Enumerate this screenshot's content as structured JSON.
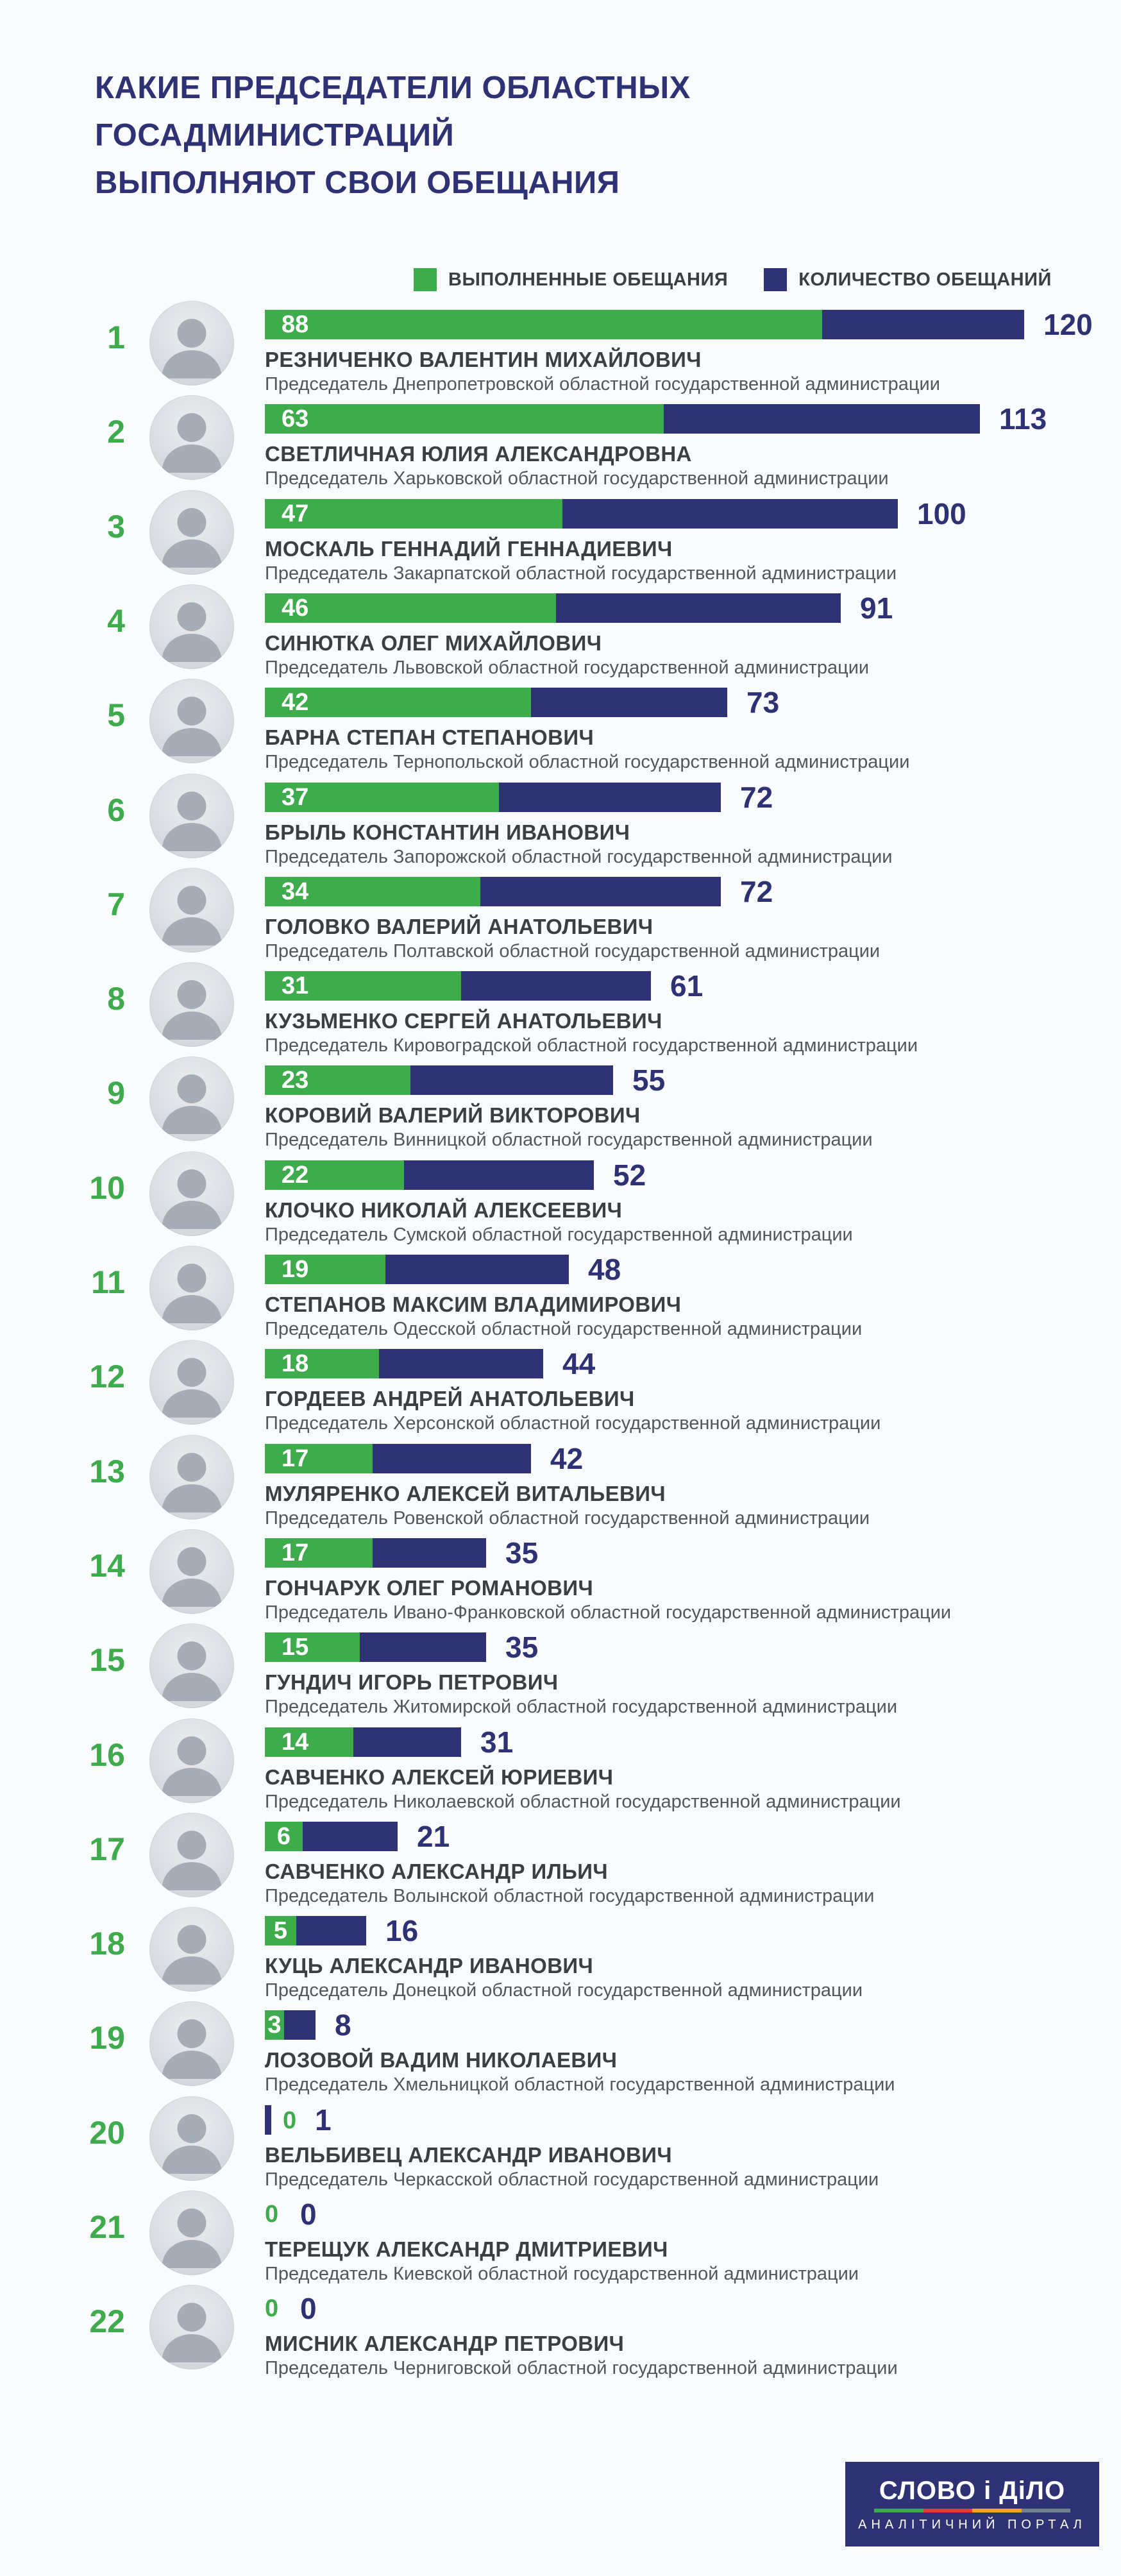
{
  "title": {
    "line1": "КАКИЕ ПРЕДСЕДАТЕЛИ ОБЛАСТНЫХ ГОСАДМИНИСТРАЦИЙ",
    "line2": "ВЫПОЛНЯЮТ СВОИ ОБЕЩАНИЯ"
  },
  "legend": {
    "fulfilled_label": "ВЫПОЛНЕННЫЕ ОБЕЩАНИЯ",
    "total_label": "КОЛИЧЕСТВО ОБЕЩАНИЙ"
  },
  "colors": {
    "green": "#3eab4d",
    "navy": "#2e3173",
    "title_navy": "#2e3274",
    "name_gray": "#3b3e43",
    "role_gray": "#53565b",
    "background": "#fafbfc",
    "stripe_green": "#3faa4b",
    "stripe_red": "#e23b33",
    "stripe_orange": "#f2a51f",
    "stripe_gray": "#71808c"
  },
  "rows": [
    {
      "rank": 1,
      "fulfilled": 88,
      "total": 120,
      "name": "РЕЗНИЧЕНКО ВАЛЕНТИН МИХАЙЛОВИЧ",
      "role": "Председатель Днепропетровской областной государственной администрации"
    },
    {
      "rank": 2,
      "fulfilled": 63,
      "total": 113,
      "name": "СВЕТЛИЧНАЯ ЮЛИЯ АЛЕКСАНДРОВНА",
      "role": "Председатель Харьковской областной государственной администрации"
    },
    {
      "rank": 3,
      "fulfilled": 47,
      "total": 100,
      "name": "МОСКАЛЬ ГЕННАДИЙ ГЕННАДИЕВИЧ",
      "role": "Председатель Закарпатской областной государственной администрации"
    },
    {
      "rank": 4,
      "fulfilled": 46,
      "total": 91,
      "name": "СИНЮТКА ОЛЕГ МИХАЙЛОВИЧ",
      "role": "Председатель Львовской областной государственной администрации"
    },
    {
      "rank": 5,
      "fulfilled": 42,
      "total": 73,
      "name": "БАРНА СТЕПАН СТЕПАНОВИЧ",
      "role": "Председатель Тернопольской областной государственной администрации"
    },
    {
      "rank": 6,
      "fulfilled": 37,
      "total": 72,
      "name": "БРЫЛЬ КОНСТАНТИН ИВАНОВИЧ",
      "role": "Председатель Запорожской областной государственной администрации"
    },
    {
      "rank": 7,
      "fulfilled": 34,
      "total": 72,
      "name": "ГОЛОВКО ВАЛЕРИЙ АНАТОЛЬЕВИЧ",
      "role": "Председатель Полтавской областной государственной администрации"
    },
    {
      "rank": 8,
      "fulfilled": 31,
      "total": 61,
      "name": "КУЗЬМЕНКО СЕРГЕЙ АНАТОЛЬЕВИЧ",
      "role": "Председатель Кировоградской областной государственной администрации"
    },
    {
      "rank": 9,
      "fulfilled": 23,
      "total": 55,
      "name": "КОРОВИЙ ВАЛЕРИЙ ВИКТОРОВИЧ",
      "role": "Председатель Винницкой областной государственной администрации"
    },
    {
      "rank": 10,
      "fulfilled": 22,
      "total": 52,
      "name": "КЛОЧКО НИКОЛАЙ АЛЕКСЕЕВИЧ",
      "role": "Председатель Сумской областной государственной администрации"
    },
    {
      "rank": 11,
      "fulfilled": 19,
      "total": 48,
      "name": "СТЕПАНОВ МАКСИМ ВЛАДИМИРОВИЧ",
      "role": "Председатель Одесской областной государственной администрации"
    },
    {
      "rank": 12,
      "fulfilled": 18,
      "total": 44,
      "name": "ГОРДЕЕВ АНДРЕЙ АНАТОЛЬЕВИЧ",
      "role": "Председатель Херсонской областной государственной администрации"
    },
    {
      "rank": 13,
      "fulfilled": 17,
      "total": 42,
      "name": "МУЛЯРЕНКО АЛЕКСЕЙ ВИТАЛЬЕВИЧ",
      "role": "Председатель Ровенской областной государственной администрации"
    },
    {
      "rank": 14,
      "fulfilled": 17,
      "total": 35,
      "name": "ГОНЧАРУК ОЛЕГ РОМАНОВИЧ",
      "role": "Председатель Ивано-Франковской областной государственной администрации"
    },
    {
      "rank": 15,
      "fulfilled": 15,
      "total": 35,
      "name": "ГУНДИЧ ИГОРЬ ПЕТРОВИЧ",
      "role": "Председатель Житомирской областной государственной администрации"
    },
    {
      "rank": 16,
      "fulfilled": 14,
      "total": 31,
      "name": "САВЧЕНКО АЛЕКСЕЙ ЮРИЕВИЧ",
      "role": "Председатель Николаевской областной государственной администрации"
    },
    {
      "rank": 17,
      "fulfilled": 6,
      "total": 21,
      "name": "САВЧЕНКО АЛЕКСАНДР ИЛЬИЧ",
      "role": "Председатель Волынской областной государственной администрации"
    },
    {
      "rank": 18,
      "fulfilled": 5,
      "total": 16,
      "name": "КУЦЬ АЛЕКСАНДР ИВАНОВИЧ",
      "role": "Председатель Донецкой областной государственной администрации"
    },
    {
      "rank": 19,
      "fulfilled": 3,
      "total": 8,
      "name": "ЛОЗОВОЙ ВАДИМ НИКОЛАЕВИЧ",
      "role": "Председатель Хмельницкой областной государственной администрации"
    },
    {
      "rank": 20,
      "fulfilled": 0,
      "total": 1,
      "name": "ВЕЛЬБИВЕЦ АЛЕКСАНДР ИВАНОВИЧ",
      "role": "Председатель Черкасской областной государственной администрации"
    },
    {
      "rank": 21,
      "fulfilled": 0,
      "total": 0,
      "name": "ТЕРЕЩУК АЛЕКСАНДР ДМИТРИЕВИЧ",
      "role": "Председатель Киевской областной государственной администрации"
    },
    {
      "rank": 22,
      "fulfilled": 0,
      "total": 0,
      "name": "МИСНИК АЛЕКСАНДР ПЕТРОВИЧ",
      "role": "Председатель Черниговской областной государственной администрации"
    }
  ],
  "chart_data": {
    "type": "bar",
    "orientation": "horizontal",
    "title": "КАКИЕ ПРЕДСЕДАТЕЛИ ОБЛАСТНЫХ ГОСАДМИНИСТРАЦИЙ ВЫПОЛНЯЮТ СВОИ ОБЕЩАНИЯ",
    "categories": [
      "РЕЗНИЧЕНКО ВАЛЕНТИН МИХАЙЛОВИЧ",
      "СВЕТЛИЧНАЯ ЮЛИЯ АЛЕКСАНДРОВНА",
      "МОСКАЛЬ ГЕННАДИЙ ГЕННАДИЕВИЧ",
      "СИНЮТКА ОЛЕГ МИХАЙЛОВИЧ",
      "БАРНА СТЕПАН СТЕПАНОВИЧ",
      "БРЫЛЬ КОНСТАНТИН ИВАНОВИЧ",
      "ГОЛОВКО ВАЛЕРИЙ АНАТОЛЬЕВИЧ",
      "КУЗЬМЕНКО СЕРГЕЙ АНАТОЛЬЕВИЧ",
      "КОРОВИЙ ВАЛЕРИЙ ВИКТОРОВИЧ",
      "КЛОЧКО НИКОЛАЙ АЛЕКСЕЕВИЧ",
      "СТЕПАНОВ МАКСИМ ВЛАДИМИРОВИЧ",
      "ГОРДЕЕВ АНДРЕЙ АНАТОЛЬЕВИЧ",
      "МУЛЯРЕНКО АЛЕКСЕЙ ВИТАЛЬЕВИЧ",
      "ГОНЧАРУК ОЛЕГ РОМАНОВИЧ",
      "ГУНДИЧ ИГОРЬ ПЕТРОВИЧ",
      "САВЧЕНКО АЛЕКСЕЙ ЮРИЕВИЧ",
      "САВЧЕНКО АЛЕКСАНДР ИЛЬИЧ",
      "КУЦЬ АЛЕКСАНДР ИВАНОВИЧ",
      "ЛОЗОВОЙ ВАДИМ НИКОЛАЕВИЧ",
      "ВЕЛЬБИВЕЦ АЛЕКСАНДР ИВАНОВИЧ",
      "ТЕРЕЩУК АЛЕКСАНДР ДМИТРИЕВИЧ",
      "МИСНИК АЛЕКСАНДР ПЕТРОВИЧ"
    ],
    "series": [
      {
        "name": "ВЫПОЛНЕННЫЕ ОБЕЩАНИЯ",
        "color": "#3eab4d",
        "values": [
          88,
          63,
          47,
          46,
          42,
          37,
          34,
          31,
          23,
          22,
          19,
          18,
          17,
          17,
          15,
          14,
          6,
          5,
          3,
          0,
          0,
          0
        ]
      },
      {
        "name": "КОЛИЧЕСТВО ОБЕЩАНИЙ",
        "color": "#2e3173",
        "values": [
          120,
          113,
          100,
          91,
          73,
          72,
          72,
          61,
          55,
          52,
          48,
          44,
          42,
          35,
          35,
          31,
          21,
          16,
          8,
          1,
          0,
          0
        ]
      }
    ],
    "xlim": [
      0,
      120
    ],
    "grid": false,
    "legend_position": "top",
    "value_labels": "fulfilled inside green bar, total right of bar"
  },
  "footer": {
    "logo_title": "СЛОВО і ДіЛО",
    "logo_subtitle": "АНАЛІТИЧНИЙ ПОРТАЛ"
  }
}
